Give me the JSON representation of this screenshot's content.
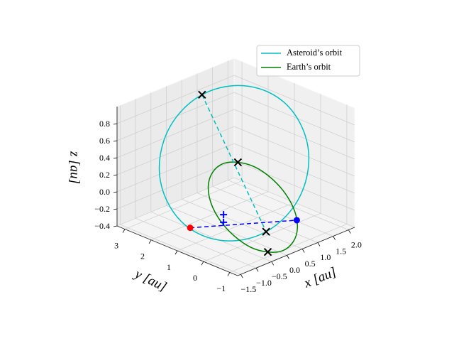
{
  "chart_data": {
    "type": "line3d",
    "xlabel": "x [au]",
    "ylabel": "y [au]",
    "zlabel": "z [au]",
    "xlim": [
      -1.6,
      2.2
    ],
    "ylim": [
      -1.3,
      3.3
    ],
    "zlim": [
      -0.4,
      1.0
    ],
    "xticks": [
      {
        "value": -1.5,
        "label": "−1.5"
      },
      {
        "value": -1.0,
        "label": "−1.0"
      },
      {
        "value": -0.5,
        "label": "−0.5"
      },
      {
        "value": 0.0,
        "label": "0.0"
      },
      0.5,
      {
        "value": 1.0,
        "label": "1.0"
      },
      1.5,
      {
        "value": 2.0,
        "label": "2.0"
      }
    ],
    "yticks": [
      {
        "value": -1,
        "label": "−1"
      },
      0,
      1,
      2,
      3
    ],
    "zticks": [
      {
        "value": -0.4,
        "label": "−0.4"
      },
      {
        "value": -0.2,
        "label": "−0.2"
      },
      {
        "value": 0.0,
        "label": "0.0"
      },
      0.2,
      0.4,
      0.6,
      0.8
    ],
    "grid": true,
    "legend": "upper right",
    "series": [
      {
        "name": "Asteroid’s orbit",
        "color": "#00bfbf",
        "x": [
          -0.08,
          0.54,
          1.11,
          1.56,
          1.8,
          1.81,
          1.58,
          1.15,
          0.58,
          -0.04,
          -0.61,
          -1.06,
          -1.3,
          -1.31,
          -1.08,
          -0.65
        ],
        "y": [
          -0.6,
          -0.77,
          -0.66,
          -0.3,
          0.26,
          0.93,
          1.62,
          2.21,
          2.62,
          2.79,
          2.68,
          2.32,
          1.76,
          1.09,
          0.4,
          -0.19
        ],
        "z": [
          -0.2,
          -0.04,
          0.17,
          0.42,
          0.65,
          0.84,
          0.95,
          0.97,
          0.9,
          0.74,
          0.53,
          0.28,
          0.05,
          -0.14,
          -0.25,
          -0.27
        ]
      },
      {
        "name": "Earth’s orbit",
        "color": "#008000",
        "x": [
          0.51,
          0.14,
          -0.25,
          -0.6,
          -0.86,
          -0.99,
          -0.97,
          -0.8,
          -0.51,
          -0.14,
          0.25,
          0.6,
          0.86,
          0.99,
          0.97,
          0.8
        ],
        "y": [
          -1.0,
          -1.09,
          -1.02,
          -0.79,
          -0.44,
          -0.02,
          0.4,
          0.76,
          1.0,
          1.09,
          1.02,
          0.79,
          0.44,
          0.02,
          -0.4,
          -0.76
        ],
        "z": [
          0,
          0.27,
          0.5,
          0.66,
          0.71,
          0.66,
          0.5,
          0.27,
          0,
          -0.27,
          -0.5,
          -0.66,
          -0.71,
          -0.66,
          -0.5,
          -0.27
        ]
      }
    ],
    "dashed_lines": [
      {
        "color": "#00bfbf",
        "x": [
          0.58,
          -0.08
        ],
        "y": [
          2.62,
          -0.6
        ],
        "z": [
          0.9,
          -0.2
        ]
      },
      {
        "color": "#0000ff",
        "x": [
          -1.26,
          0.67
        ],
        "y": [
          0.91,
          -0.89
        ],
        "z": [
          -0.17,
          -0.14
        ]
      }
    ],
    "markers": [
      {
        "marker": "x",
        "color": "#000000",
        "x": 0.58,
        "y": 2.62,
        "z": 0.9
      },
      {
        "marker": "x",
        "color": "#000000",
        "x": -0.08,
        "y": -0.6,
        "z": -0.2
      },
      {
        "marker": "x",
        "color": "#000000",
        "x": -0.86,
        "y": -0.44,
        "z": 0.71
      },
      {
        "marker": "x",
        "color": "#000000",
        "x": 0.86,
        "y": 0.44,
        "z": -0.71
      },
      {
        "marker": "o",
        "color": "#ff0000",
        "x": -1.26,
        "y": 0.91,
        "z": -0.17
      },
      {
        "marker": "o",
        "color": "#0000ff",
        "x": 0.67,
        "y": -0.89,
        "z": -0.14
      },
      {
        "marker": "+",
        "color": "#0000ff",
        "x": -0.5,
        "y": 0.53,
        "z": -0.08
      },
      {
        "marker": "+",
        "color": "#0000ff",
        "x": -0.5,
        "y": 0.53,
        "z": -0.17
      }
    ]
  }
}
